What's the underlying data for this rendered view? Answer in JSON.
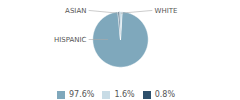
{
  "chart_data": {
    "type": "pie",
    "categories": [
      "HISPANIC",
      "WHITE",
      "ASIAN"
    ],
    "values": [
      97.6,
      1.6,
      0.8
    ],
    "value_labels": [
      "97.6%",
      "1.6%",
      "0.8%"
    ],
    "colors": [
      "#7fa8bc",
      "#c8dce6",
      "#2d4f6b"
    ],
    "legend": "bottom"
  }
}
